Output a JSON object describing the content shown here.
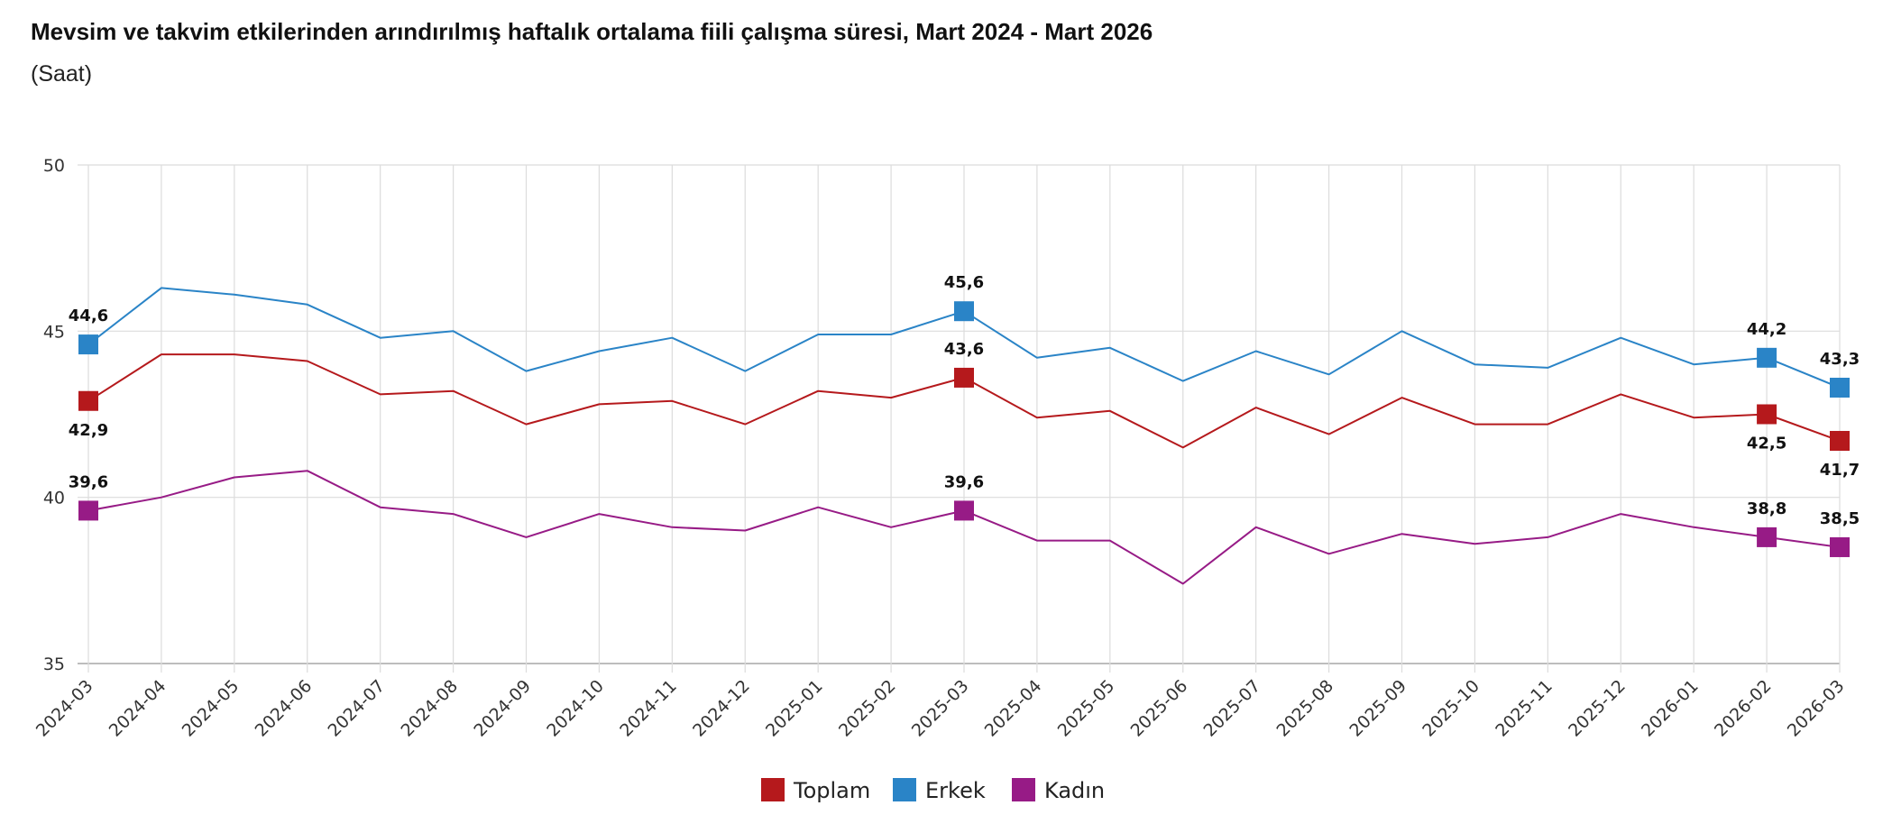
{
  "chart_data": {
    "type": "line",
    "title": "Mevsim ve takvim etkilerinden arındırılmış haftalık ortalama fiili çalışma süresi, Mart 2024 - Mart 2026",
    "subtitle": "(Saat)",
    "ylim": [
      35,
      50
    ],
    "yticks": [
      35,
      40,
      45,
      50
    ],
    "grid": true,
    "legend_position": "bottom-center",
    "categories": [
      "2024-03",
      "2024-04",
      "2024-05",
      "2024-06",
      "2024-07",
      "2024-08",
      "2024-09",
      "2024-10",
      "2024-11",
      "2024-12",
      "2025-01",
      "2025-02",
      "2025-03",
      "2025-04",
      "2025-05",
      "2025-06",
      "2025-07",
      "2025-08",
      "2025-09",
      "2025-10",
      "2025-11",
      "2025-12",
      "2026-01",
      "2026-02",
      "2026-03"
    ],
    "series": [
      {
        "name": "Toplam",
        "color": "#b5191c",
        "values": [
          42.9,
          44.3,
          44.3,
          44.1,
          43.1,
          43.2,
          42.2,
          42.8,
          42.9,
          42.2,
          43.2,
          43.0,
          43.6,
          42.4,
          42.6,
          41.5,
          42.7,
          41.9,
          43.0,
          42.2,
          42.2,
          43.1,
          42.4,
          42.5,
          41.7
        ],
        "labels": [
          {
            "index": 0,
            "text": "42,9",
            "position": "below"
          },
          {
            "index": 12,
            "text": "43,6",
            "position": "above"
          },
          {
            "index": 23,
            "text": "42,5",
            "position": "below"
          },
          {
            "index": 24,
            "text": "41,7",
            "position": "below"
          }
        ]
      },
      {
        "name": "Erkek",
        "color": "#2a84c7",
        "values": [
          44.6,
          46.3,
          46.1,
          45.8,
          44.8,
          45.0,
          43.8,
          44.4,
          44.8,
          43.8,
          44.9,
          44.9,
          45.6,
          44.2,
          44.5,
          43.5,
          44.4,
          43.7,
          45.0,
          44.0,
          43.9,
          44.8,
          44.0,
          44.2,
          43.3
        ],
        "labels": [
          {
            "index": 0,
            "text": "44,6",
            "position": "above"
          },
          {
            "index": 12,
            "text": "45,6",
            "position": "above"
          },
          {
            "index": 23,
            "text": "44,2",
            "position": "above"
          },
          {
            "index": 24,
            "text": "43,3",
            "position": "above"
          }
        ]
      },
      {
        "name": "Kadın",
        "color": "#971b86",
        "values": [
          39.6,
          40.0,
          40.6,
          40.8,
          39.7,
          39.5,
          38.8,
          39.5,
          39.1,
          39.0,
          39.7,
          39.1,
          39.6,
          38.7,
          38.7,
          37.4,
          39.1,
          38.3,
          38.9,
          38.6,
          38.8,
          39.5,
          39.1,
          38.8,
          38.5
        ],
        "labels": [
          {
            "index": 0,
            "text": "39,6",
            "position": "above"
          },
          {
            "index": 12,
            "text": "39,6",
            "position": "above"
          },
          {
            "index": 23,
            "text": "38,8",
            "position": "above"
          },
          {
            "index": 24,
            "text": "38,5",
            "position": "above"
          }
        ]
      }
    ]
  }
}
